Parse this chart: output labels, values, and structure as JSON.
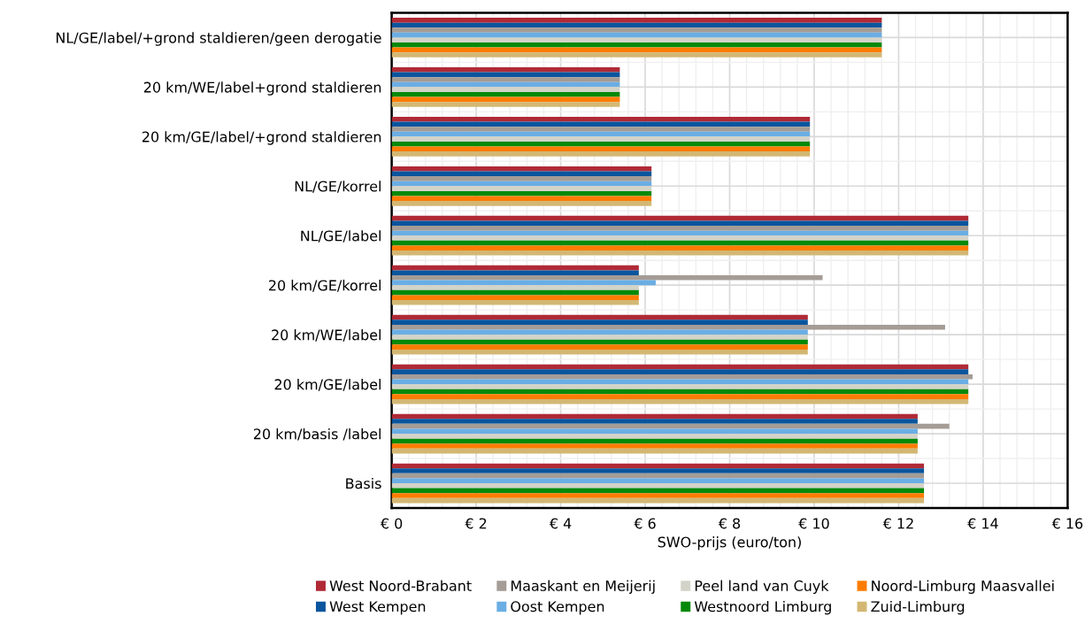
{
  "chart_data": {
    "type": "bar",
    "orientation": "horizontal",
    "xlabel": "SWO-prijs (euro/ton)",
    "categories": [
      "NL/GE/label/+grond staldieren/geen derogatie",
      "20 km/WE/label+grond staldieren",
      "20 km/GE/label/+grond staldieren",
      "NL/GE/korrel",
      "NL/GE/label",
      "20 km/GE/korrel",
      "20 km/WE/label",
      "20 km/GE/label",
      "20 km/basis /label",
      "Basis"
    ],
    "series": [
      {
        "name": "West Noord-Brabant",
        "color": "#b02a36",
        "values": [
          11.6,
          5.4,
          9.9,
          6.15,
          13.65,
          5.85,
          9.85,
          13.65,
          12.45,
          12.6
        ]
      },
      {
        "name": "West Kempen",
        "color": "#0a559e",
        "values": [
          11.6,
          5.4,
          9.9,
          6.15,
          13.65,
          5.85,
          9.85,
          13.65,
          12.45,
          12.6
        ]
      },
      {
        "name": "Maaskant en Meijerij",
        "color": "#a59c96",
        "values": [
          11.6,
          5.4,
          9.9,
          6.15,
          13.65,
          10.2,
          13.1,
          13.75,
          13.2,
          12.6
        ]
      },
      {
        "name": "Oost Kempen",
        "color": "#6aaee4",
        "values": [
          11.6,
          5.4,
          9.9,
          6.15,
          13.65,
          6.25,
          9.85,
          13.65,
          12.45,
          12.6
        ]
      },
      {
        "name": "Peel land van Cuyk",
        "color": "#d4d3c9",
        "values": [
          11.6,
          5.4,
          9.9,
          6.15,
          13.65,
          5.85,
          9.85,
          13.65,
          12.45,
          12.6
        ]
      },
      {
        "name": "Westnoord Limburg",
        "color": "#05890a",
        "values": [
          11.6,
          5.4,
          9.9,
          6.15,
          13.65,
          5.85,
          9.85,
          13.65,
          12.45,
          12.6
        ]
      },
      {
        "name": "Noord-Limburg Maasvallei",
        "color": "#fd7c01",
        "values": [
          11.6,
          5.4,
          9.9,
          6.15,
          13.65,
          5.85,
          9.85,
          13.65,
          12.45,
          12.6
        ]
      },
      {
        "name": "Zuid-Limburg",
        "color": "#d3b773",
        "values": [
          11.6,
          5.4,
          9.9,
          6.15,
          13.65,
          5.85,
          9.85,
          13.65,
          12.45,
          12.6
        ]
      }
    ],
    "xlim": [
      0,
      16
    ],
    "xticks": [
      {
        "value": 0,
        "label": "€ 0"
      },
      {
        "value": 2,
        "label": "€ 2"
      },
      {
        "value": 4,
        "label": "€ 4"
      },
      {
        "value": 6,
        "label": "€ 6"
      },
      {
        "value": 8,
        "label": "€ 8"
      },
      {
        "value": 10,
        "label": "€ 10"
      },
      {
        "value": 12,
        "label": "€ 12"
      },
      {
        "value": 14,
        "label": "€ 14"
      },
      {
        "value": 16,
        "label": "€ 16"
      }
    ],
    "grid": true,
    "legend": "bottom"
  }
}
